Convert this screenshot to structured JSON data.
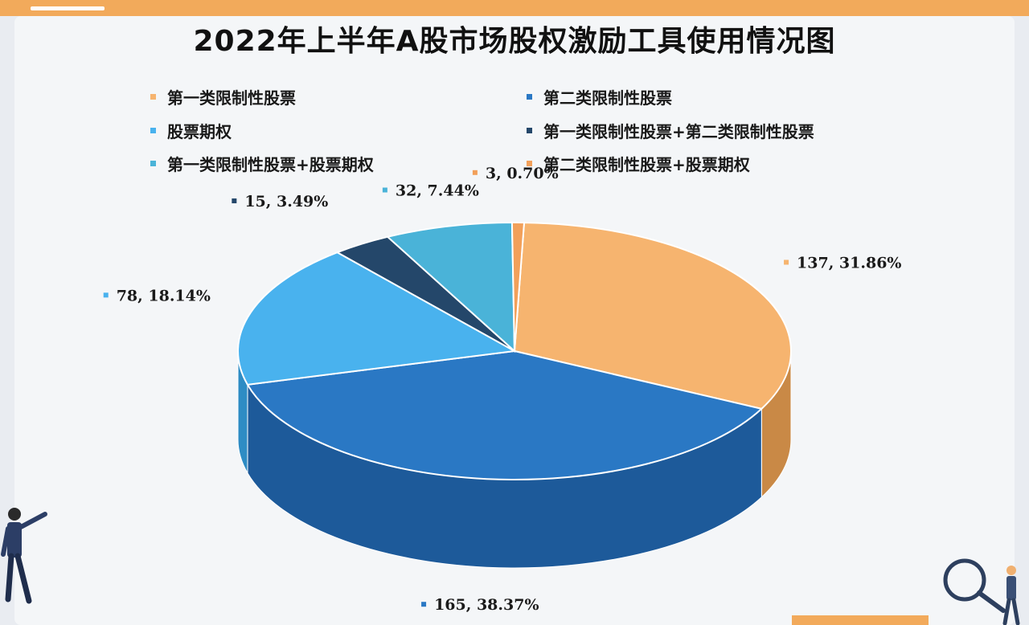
{
  "chart_data": {
    "type": "pie",
    "title": "2022年上半年A股市场股权激励工具使用情况图",
    "legend_position": "top",
    "slices": [
      {
        "name": "第一类限制性股票",
        "value": 137,
        "percent": "31.86%",
        "color": "#f6b46f",
        "side_color": "#c98946"
      },
      {
        "name": "第二类限制性股票",
        "value": 165,
        "percent": "38.37%",
        "color": "#2a78c4",
        "side_color": "#1d5a9a"
      },
      {
        "name": "股票期权",
        "value": 78,
        "percent": "18.14%",
        "color": "#49b2ee",
        "side_color": "#2e8cc4"
      },
      {
        "name": "第一类限制性股票+第二类限制性股票",
        "value": 15,
        "percent": "3.49%",
        "color": "#24476a",
        "side_color": "#172f48"
      },
      {
        "name": "第一类限制性股票+股票期权",
        "value": 32,
        "percent": "7.44%",
        "color": "#4ab3d8",
        "side_color": "#3190b3"
      },
      {
        "name": "第二类限制性股票+股票期权",
        "value": 3,
        "percent": "0.70%",
        "color": "#f2a05a",
        "side_color": "#c27a3a"
      }
    ]
  }
}
